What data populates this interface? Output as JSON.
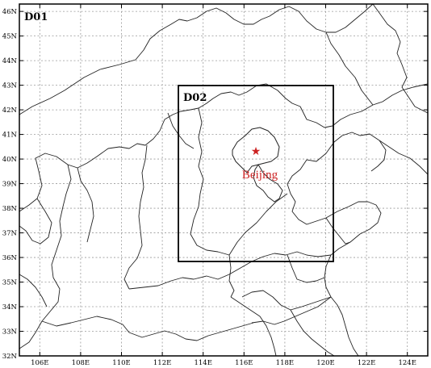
{
  "map": {
    "lon_ticks": [
      "106E",
      "108E",
      "110E",
      "112E",
      "114E",
      "116E",
      "118E",
      "120E",
      "122E",
      "124E"
    ],
    "lat_ticks": [
      "32N",
      "33N",
      "34N",
      "35N",
      "36N",
      "37N",
      "38N",
      "39N",
      "40N",
      "41N",
      "42N",
      "43N",
      "44N",
      "45N",
      "46N"
    ],
    "domains": [
      {
        "label": "D01",
        "lon_range": [
          105,
          125
        ],
        "lat_range": [
          32,
          46.3
        ]
      },
      {
        "label": "D02",
        "lon_range": [
          112.8,
          120.3
        ],
        "lat_range": [
          35.8,
          42.8
        ]
      }
    ],
    "marker": {
      "label": "Beijing",
      "lon": 116.6,
      "lat": 40.2,
      "symbol": "★",
      "color": "#cc2222"
    },
    "colors": {
      "frame": "#000000",
      "grid": "#9a9a9a",
      "borders": "#222222",
      "marker": "#cc2222"
    }
  }
}
